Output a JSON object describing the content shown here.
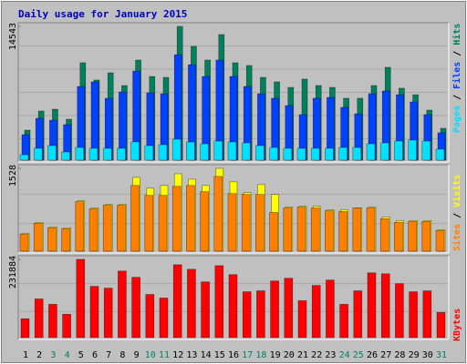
{
  "chart_data": [
    {
      "type": "bar",
      "title": "Daily usage for January 2015",
      "legend_separator": " / ",
      "ylim": [
        0,
        14543
      ],
      "yticks": [
        14543
      ],
      "series": [
        {
          "name": "Pages",
          "color": "#00e0ff",
          "values": [
            590,
            1290,
            1580,
            890,
            1380,
            1290,
            1290,
            1290,
            1980,
            1580,
            1680,
            2280,
            1980,
            1780,
            2080,
            1980,
            1880,
            1580,
            1380,
            1290,
            1290,
            1290,
            1290,
            1380,
            1380,
            1780,
            1880,
            2080,
            2180,
            2080,
            1190
          ]
        },
        {
          "name": "Files",
          "color": "#0040ff",
          "values": [
            2770,
            4550,
            4350,
            3860,
            8010,
            8510,
            6730,
            7420,
            9690,
            7320,
            7220,
            11470,
            10380,
            9100,
            10880,
            9100,
            8010,
            7220,
            6730,
            5930,
            4950,
            6730,
            6820,
            5740,
            5040,
            7220,
            7520,
            7120,
            6330,
            4950,
            2970
          ]
        },
        {
          "name": "Hits",
          "color": "#00805c",
          "values": [
            3260,
            5340,
            5540,
            4450,
            10590,
            8710,
            9500,
            8110,
            10880,
            9100,
            9000,
            14543,
            12370,
            10880,
            13650,
            10590,
            10290,
            9000,
            8510,
            7910,
            8810,
            8110,
            7910,
            6730,
            6730,
            8110,
            10090,
            7820,
            7120,
            5440,
            3460
          ]
        }
      ]
    },
    {
      "type": "bar",
      "legend_separator": " / ",
      "ylim": [
        0,
        1528
      ],
      "yticks": [
        1528
      ],
      "series": [
        {
          "name": "Sites",
          "color": "#ff8000",
          "values": [
            315,
            515,
            432,
            415,
            913,
            780,
            847,
            847,
            1212,
            1029,
            1029,
            1195,
            1212,
            1096,
            1378,
            1062,
            1046,
            1046,
            714,
            797,
            813,
            797,
            747,
            730,
            797,
            797,
            598,
            531,
            548,
            548,
            382
          ]
        },
        {
          "name": "Visits",
          "color": "#ffff00",
          "values": [
            332,
            531,
            448,
            432,
            930,
            797,
            863,
            863,
            1361,
            1162,
            1212,
            1428,
            1328,
            1212,
            1528,
            1278,
            1079,
            1228,
            1046,
            813,
            830,
            830,
            764,
            764,
            797,
            813,
            631,
            564,
            564,
            564,
            398
          ]
        }
      ]
    },
    {
      "type": "bar",
      "ylim": [
        0,
        231884
      ],
      "yticks": [
        231884
      ],
      "categories": [
        "1",
        "2",
        "3",
        "4",
        "5",
        "6",
        "7",
        "8",
        "9",
        "10",
        "11",
        "12",
        "13",
        "14",
        "15",
        "16",
        "17",
        "18",
        "19",
        "20",
        "21",
        "22",
        "23",
        "24",
        "25",
        "26",
        "27",
        "28",
        "29",
        "30",
        "31"
      ],
      "category_colors": [
        "#000000",
        "#000000",
        "#00805c",
        "#00805c",
        "#000000",
        "#000000",
        "#000000",
        "#000000",
        "#000000",
        "#00805c",
        "#00805c",
        "#000000",
        "#000000",
        "#000000",
        "#000000",
        "#000000",
        "#00805c",
        "#00805c",
        "#000000",
        "#000000",
        "#000000",
        "#000000",
        "#000000",
        "#00805c",
        "#00805c",
        "#000000",
        "#000000",
        "#000000",
        "#000000",
        "#000000",
        "#00805c"
      ],
      "series": [
        {
          "name": "KBytes",
          "color": "#ff0000",
          "values": [
            55970,
            114600,
            98600,
            69300,
            231884,
            151900,
            146600,
            197200,
            178600,
            127900,
            117300,
            215900,
            202500,
            165200,
            213200,
            186600,
            135900,
            138600,
            167900,
            175900,
            109300,
            154600,
            170600,
            98600,
            138600,
            191900,
            189200,
            159900,
            135900,
            138600,
            74600
          ]
        }
      ]
    }
  ]
}
